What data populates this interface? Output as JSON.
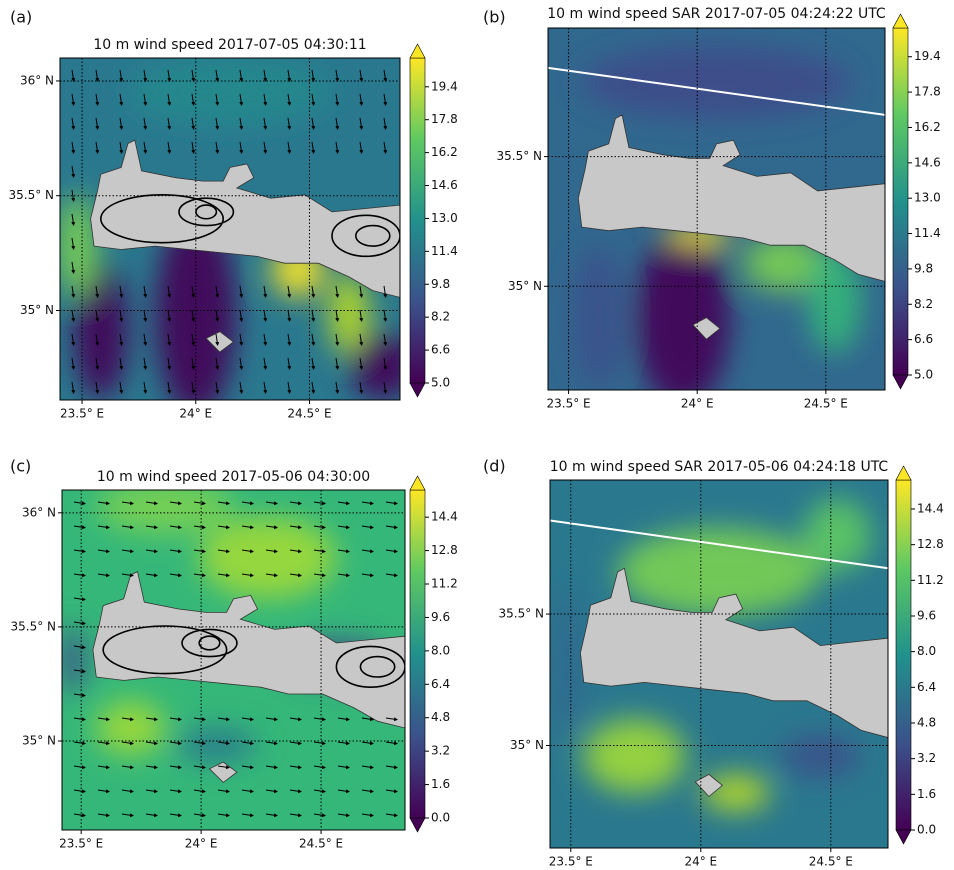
{
  "panels": [
    {
      "type": "map",
      "label": "(a)",
      "title": "10 m wind speed 2017-07-05 04:30:11",
      "xlim": [
        23.403,
        24.898
      ],
      "ylim": [
        34.61,
        36.1
      ],
      "xticks": [
        {
          "value": 23.5,
          "label": "23.5° E"
        },
        {
          "value": 24,
          "label": "24° E"
        },
        {
          "value": 24.5,
          "label": "24.5° E"
        }
      ],
      "yticks": [
        {
          "value": 35,
          "label": "35° N"
        },
        {
          "value": 35.5,
          "label": "35.5° N"
        },
        {
          "value": 36,
          "label": "36° N"
        }
      ],
      "colorbar": {
        "lim": [
          5,
          20.8
        ],
        "ticks": [
          {
            "value": 5,
            "label": "5.0"
          },
          6.6,
          8.2,
          9.8,
          11.4,
          {
            "value": 13,
            "label": "13.0"
          },
          14.6,
          16.2,
          17.8,
          19.4
        ]
      }
    },
    {
      "type": "map",
      "label": "(b)",
      "title": "10 m wind speed SAR 2017-07-05 04:24:22 UTC",
      "xlim": [
        23.42,
        24.73
      ],
      "ylim": [
        34.6,
        35.996
      ],
      "xticks": [
        {
          "value": 23.5,
          "label": "23.5° E"
        },
        {
          "value": 24,
          "label": "24° E"
        },
        {
          "value": 24.5,
          "label": "24.5° E"
        }
      ],
      "yticks": [
        {
          "value": 35,
          "label": "35° N"
        },
        {
          "value": 35.5,
          "label": "35.5° N"
        }
      ],
      "colorbar": {
        "lim": [
          5,
          20.7
        ],
        "ticks": [
          {
            "value": 5,
            "label": "5.0"
          },
          6.6,
          8.2,
          9.8,
          11.4,
          {
            "value": 13,
            "label": "13.0"
          },
          14.6,
          16.2,
          17.8,
          19.4
        ]
      }
    },
    {
      "type": "map",
      "label": "(c)",
      "title": "10 m wind speed 2017-05-06 04:30:00",
      "xlim": [
        23.42,
        24.85
      ],
      "ylim": [
        34.61,
        36.1
      ],
      "xticks": [
        {
          "value": 23.5,
          "label": "23.5° E"
        },
        {
          "value": 24,
          "label": "24° E"
        },
        {
          "value": 24.5,
          "label": "24.5° E"
        }
      ],
      "yticks": [
        {
          "value": 35,
          "label": "35° N"
        },
        {
          "value": 35.5,
          "label": "35.5° N"
        },
        {
          "value": 36,
          "label": "36° N"
        }
      ],
      "colorbar": {
        "lim": [
          0,
          15.7
        ],
        "ticks": [
          {
            "value": 0,
            "label": "0.0"
          },
          1.6,
          3.2,
          4.8,
          6.4,
          {
            "value": 8,
            "label": "8.0"
          },
          9.6,
          11.2,
          12.8,
          14.4
        ]
      }
    },
    {
      "type": "map",
      "label": "(d)",
      "title": "10 m wind speed SAR 2017-05-06 04:24:18 UTC",
      "xlim": [
        23.42,
        24.72
      ],
      "ylim": [
        34.61,
        36.01
      ],
      "xticks": [
        {
          "value": 23.5,
          "label": "23.5° E"
        },
        {
          "value": 24,
          "label": "24° E"
        },
        {
          "value": 24.5,
          "label": "24.5° E"
        }
      ],
      "yticks": [
        {
          "value": 35,
          "label": "35° N"
        },
        {
          "value": 35.5,
          "label": "35.5° N"
        }
      ],
      "colorbar": {
        "lim": [
          0,
          15.7
        ],
        "ticks": [
          {
            "value": 0,
            "label": "0.0"
          },
          1.6,
          3.2,
          4.8,
          6.4,
          {
            "value": 8,
            "label": "8.0"
          },
          9.6,
          11.2,
          12.8,
          14.4
        ]
      }
    }
  ]
}
